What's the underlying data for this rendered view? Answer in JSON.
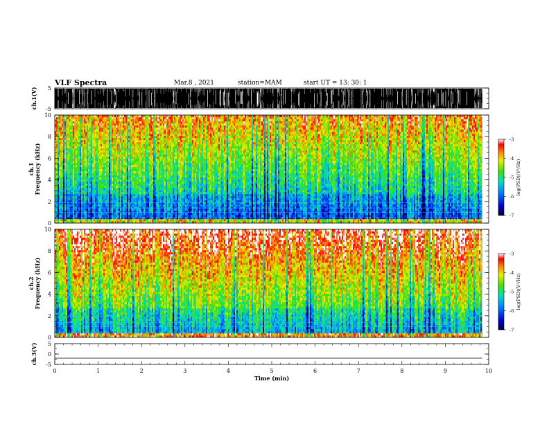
{
  "header": {
    "title": "VLF Spectra",
    "date": "Mar.8 , 2021",
    "station": "station=MAM",
    "start": "start UT = 13: 30: 1"
  },
  "chart_data": [
    {
      "type": "line",
      "panel": "ch1-waveform",
      "ylabel": "ch.1(V)",
      "ylim": [
        -5,
        5
      ],
      "yticks": [
        "5",
        "-5"
      ],
      "xlim": [
        0,
        10
      ],
      "note_data": "dense waveform bursts filling the panel from 0 to 9.85 min"
    },
    {
      "type": "heatmap",
      "panel": "ch1-spectrogram",
      "ylabel_lines": [
        "ch.1",
        "Frequency (kHz)"
      ],
      "ylim": [
        0,
        10
      ],
      "yticks": [
        "0",
        "2",
        "4",
        "6",
        "8",
        "10"
      ],
      "xlim": [
        0,
        10
      ],
      "data_end_min": 9.85,
      "colorbar": {
        "label": "log(PSD)(V²/Hz)",
        "range": [
          -7,
          -3
        ],
        "ticks": [
          "-3",
          "-4",
          "-5",
          "-6",
          "-7"
        ]
      }
    },
    {
      "type": "heatmap",
      "panel": "ch2-spectrogram",
      "ylabel_lines": [
        "ch.2",
        "Frequency (kHz)"
      ],
      "ylim": [
        0,
        10
      ],
      "yticks": [
        "0",
        "2",
        "4",
        "6",
        "8",
        "10"
      ],
      "xlim": [
        0,
        10
      ],
      "data_end_min": 9.85,
      "colorbar": {
        "label": "log(PSD)(V²/Hz)",
        "range": [
          -7,
          -3
        ],
        "ticks": [
          "-3",
          "-4",
          "-5",
          "-6",
          "-7"
        ]
      }
    },
    {
      "type": "line",
      "panel": "ch3-waveform",
      "ylabel": "ch.3(V)",
      "ylim": [
        -5,
        5
      ],
      "yticks": [
        "5",
        "0",
        "-5"
      ],
      "x": [
        0,
        9.85
      ],
      "y": [
        -2,
        -2
      ],
      "xlabel": "Time (min)",
      "xlim": [
        0,
        10
      ],
      "xticks": [
        "0",
        "1",
        "2",
        "3",
        "4",
        "5",
        "6",
        "7",
        "8",
        "9",
        "10"
      ]
    }
  ]
}
